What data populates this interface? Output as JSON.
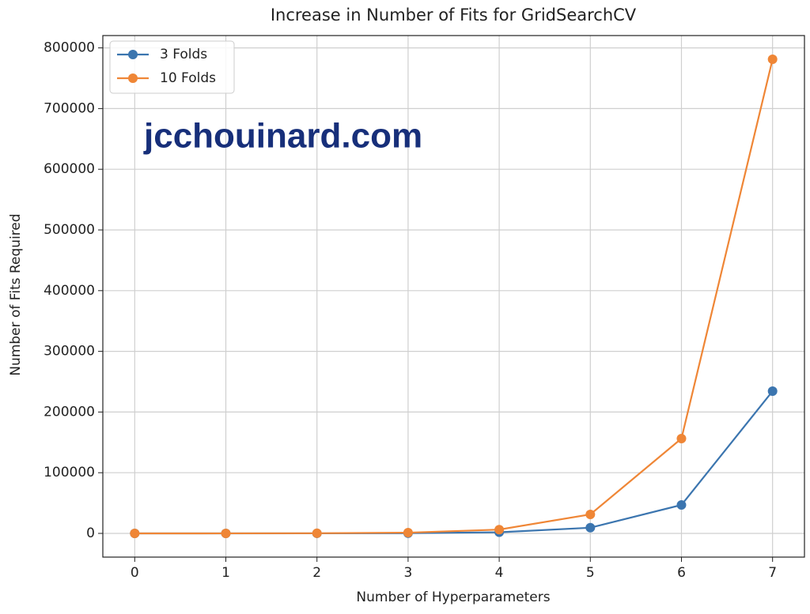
{
  "chart_data": {
    "type": "line",
    "title": "Increase in Number of Fits for GridSearchCV",
    "x_label": "Number of Hyperparameters",
    "y_label": "Number of Fits Required",
    "watermark": "jcchouinard.com",
    "x": [
      0,
      1,
      2,
      3,
      4,
      5,
      6,
      7
    ],
    "series": [
      {
        "name": "3 Folds",
        "color": "#3b75af",
        "values": [
          3,
          15,
          75,
          375,
          1875,
          9375,
          46875,
          234375
        ]
      },
      {
        "name": "10 Folds",
        "color": "#ef8636",
        "values": [
          10,
          50,
          250,
          1250,
          6250,
          31250,
          156250,
          781250
        ]
      }
    ],
    "xlim": [
      -0.35,
      7.35
    ],
    "xticks": [
      0,
      1,
      2,
      3,
      4,
      5,
      6,
      7
    ],
    "ylim": [
      -39062.5,
      820312.5
    ],
    "yticks": [
      0,
      100000,
      200000,
      300000,
      400000,
      500000,
      600000,
      700000,
      800000
    ],
    "grid": true,
    "legend": "upper-left"
  }
}
